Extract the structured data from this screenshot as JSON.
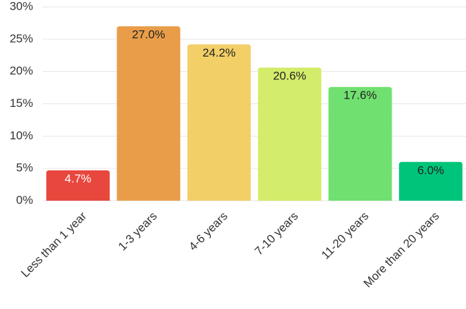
{
  "chart_data": {
    "type": "bar",
    "categories": [
      "Less than 1 year",
      "1-3 years",
      "4-6 years",
      "7-10 years",
      "11-20 years",
      "More than 20 years"
    ],
    "values": [
      4.7,
      27.0,
      24.2,
      20.6,
      17.6,
      6.0
    ],
    "value_labels": [
      "4.7%",
      "27.0%",
      "24.2%",
      "20.6%",
      "17.6%",
      "6.0%"
    ],
    "colors": [
      "#e8473e",
      "#e99d48",
      "#f2cf67",
      "#d4ec6b",
      "#70e070",
      "#00c47a"
    ],
    "value_label_colors": [
      "#ffffff",
      "#222222",
      "#222222",
      "#222222",
      "#222222",
      "#222222"
    ],
    "ylim": [
      0,
      30
    ],
    "yticks": [
      {
        "value": 0,
        "label": "0%"
      },
      {
        "value": 5,
        "label": "5%"
      },
      {
        "value": 10,
        "label": "10%"
      },
      {
        "value": 15,
        "label": "15%"
      },
      {
        "value": 20,
        "label": "20%"
      },
      {
        "value": 25,
        "label": "25%"
      },
      {
        "value": 30,
        "label": "30%"
      }
    ],
    "grid": true
  }
}
